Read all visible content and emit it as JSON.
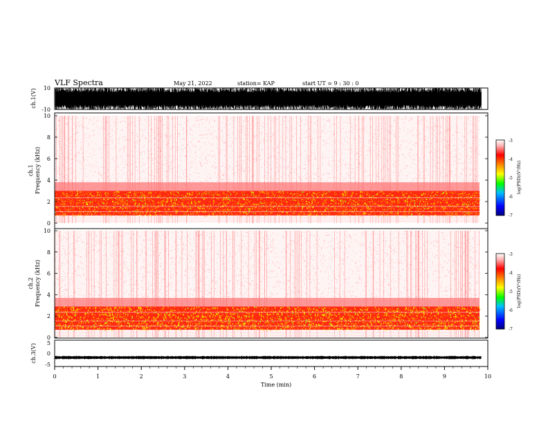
{
  "header": {
    "title": "VLF Spectra",
    "date": "May 21, 2022",
    "station": "station= KAP",
    "start": "start  UT =   9 : 30 : 0"
  },
  "colors": {
    "colorbar": [
      "#000080",
      "#0000ff",
      "#00bfff",
      "#00ff00",
      "#ffff00",
      "#ff8000",
      "#ff0000",
      "#ffb0b0",
      "#ffffff"
    ],
    "trace": "#000000"
  },
  "chart_data": [
    {
      "id": "ch1-waveform",
      "type": "line",
      "ylabel": "ch.1(V)",
      "ylim": [
        -10,
        10
      ],
      "ytick_labels": [
        "10",
        "-10"
      ],
      "xlim": [
        0,
        10
      ],
      "description_values": {
        "amplitude_min": -10,
        "amplitude_max": 10
      }
    },
    {
      "id": "ch1-spectrogram",
      "type": "heatmap",
      "ylabel": "ch.1 Frequency (kHz)",
      "ylabel_lines": [
        "ch.1",
        "Frequency  (kHz)"
      ],
      "ylim": [
        0,
        10
      ],
      "ytick_labels": [
        "0",
        "2",
        "4",
        "6",
        "8",
        "10"
      ],
      "xlim": [
        0,
        9.85
      ],
      "intense_band_khz": [
        0.7,
        3.0
      ],
      "colorbar": {
        "label": "log(PSD)(V²/Hz)",
        "range": [
          -7,
          -3
        ],
        "tick_labels": [
          "-3",
          "-4",
          "-5",
          "-6",
          "-7"
        ]
      }
    },
    {
      "id": "ch2-spectrogram",
      "type": "heatmap",
      "ylabel": "ch.2 Frequency (kHz)",
      "ylabel_lines": [
        "ch.2",
        "Frequency  (kHz)"
      ],
      "ylim": [
        0,
        10
      ],
      "ytick_labels": [
        "0",
        "2",
        "4",
        "6",
        "8",
        "10"
      ],
      "xlim": [
        0,
        9.85
      ],
      "intense_band_khz": [
        0.7,
        2.9
      ],
      "colorbar": {
        "label": "log(PSD)(V²/Hz)",
        "range": [
          -7,
          -3
        ],
        "tick_labels": [
          "-3",
          "-4",
          "-5",
          "-6",
          "-7"
        ]
      }
    },
    {
      "id": "ch3-waveform",
      "type": "line",
      "ylabel": "ch.3(V)",
      "ylim": [
        -5,
        5
      ],
      "ytick_labels": [
        "5",
        "0",
        "-5"
      ],
      "xlim": [
        0,
        10
      ],
      "xlabel": "Time  (min)",
      "xtick_labels": [
        "0",
        "1",
        "2",
        "3",
        "4",
        "5",
        "6",
        "7",
        "8",
        "9",
        "10"
      ],
      "trace_level_v": -1.6,
      "trace_halfwidth_v": 0.5
    }
  ]
}
